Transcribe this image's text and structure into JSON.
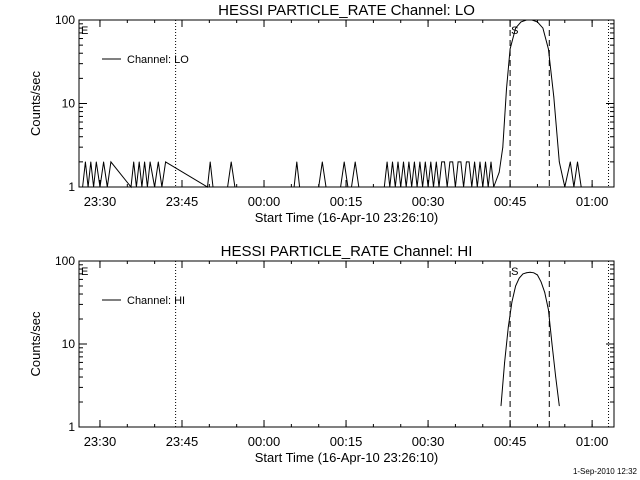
{
  "timestamp": "1-Sep-2010 12:32",
  "chart_data": [
    {
      "type": "line",
      "title": "HESSI PARTICLE_RATE Channel: LO",
      "xlabel": "Start Time (16-Apr-10 23:26:10)",
      "ylabel": "Counts/sec",
      "y_scale": "log",
      "ylim": [
        1,
        100
      ],
      "xlim": [
        "23:26:10",
        "01:04:00"
      ],
      "x_ticks": [
        "23:30",
        "23:45",
        "00:00",
        "00:15",
        "00:30",
        "00:45",
        "01:00"
      ],
      "y_ticks": [
        "1",
        "10",
        "100"
      ],
      "grid": false,
      "legend_position": "top-left",
      "series": [
        {
          "name": "Channel: LO",
          "x": [
            "23:26:50",
            "23:27:20",
            "23:27:50",
            "23:28:20",
            "23:28:50",
            "23:29:20",
            "23:30:00",
            "23:30:40",
            "23:31:20",
            "23:32:00",
            "23:35:40",
            "23:36:10",
            "23:36:40",
            "23:37:10",
            "23:37:40",
            "23:38:10",
            "23:38:40",
            "23:39:10",
            "23:40:00",
            "23:40:40",
            "23:41:20",
            "23:42:00",
            "23:49:40",
            "23:50:10",
            "23:50:40",
            "23:53:20",
            "23:54:00",
            "23:54:40",
            "00:05:30",
            "00:06:00",
            "00:06:30",
            "00:10:00",
            "00:10:40",
            "00:11:20",
            "00:14:00",
            "00:14:40",
            "00:15:20",
            "00:16:00",
            "00:16:40",
            "00:17:20",
            "00:22:00",
            "00:22:30",
            "00:23:00",
            "00:23:30",
            "00:24:00",
            "00:24:30",
            "00:25:00",
            "00:25:30",
            "00:26:00",
            "00:26:30",
            "00:27:00",
            "00:27:30",
            "00:28:00",
            "00:28:30",
            "00:29:00",
            "00:29:30",
            "00:30:00",
            "00:30:30",
            "00:31:00",
            "00:31:30",
            "00:32:00",
            "00:32:30",
            "00:33:00",
            "00:33:30",
            "00:34:00",
            "00:34:30",
            "00:35:00",
            "00:35:30",
            "00:36:00",
            "00:36:30",
            "00:37:00",
            "00:37:30",
            "00:38:00",
            "00:38:30",
            "00:39:00",
            "00:39:30",
            "00:40:00",
            "00:40:30",
            "00:41:00",
            "00:41:30",
            "00:42:00",
            "00:43:00",
            "00:43:40",
            "00:44:20",
            "00:45:00",
            "00:46:00",
            "00:47:00",
            "00:48:00",
            "00:49:00",
            "00:50:00",
            "00:51:00",
            "00:52:00",
            "00:53:00",
            "00:54:00",
            "00:55:00",
            "00:56:00",
            "00:56:40",
            "00:57:20",
            "00:58:00"
          ],
          "y": [
            1,
            2,
            1,
            2,
            1,
            2,
            1,
            2,
            1,
            2,
            1,
            2,
            1,
            2,
            1,
            2,
            1,
            2,
            1,
            2,
            1,
            2,
            1,
            2,
            1,
            1,
            2,
            1,
            1,
            2,
            1,
            1,
            2,
            1,
            1,
            2,
            1,
            1,
            2,
            1,
            1,
            2,
            1,
            2,
            1,
            2,
            1,
            2,
            1,
            2,
            1,
            2,
            1,
            2,
            1,
            2,
            1,
            2,
            1,
            2,
            1,
            2,
            2,
            1,
            2,
            2,
            1,
            2,
            2,
            1,
            2,
            2,
            1,
            2,
            1,
            2,
            1,
            2,
            1,
            2,
            1,
            1.5,
            3,
            15,
            45,
            80,
            95,
            100,
            100,
            95,
            80,
            45,
            12,
            2,
            1,
            2,
            1,
            2,
            1
          ]
        }
      ],
      "markers": [
        {
          "kind": "dotted",
          "x": "23:43:50"
        },
        {
          "kind": "dotted",
          "x": "01:03:00"
        },
        {
          "kind": "dashed",
          "x": "00:45:00",
          "label": "S"
        },
        {
          "kind": "dashed",
          "x": "00:52:10"
        }
      ],
      "corner_label": "E"
    },
    {
      "type": "line",
      "title": "HESSI PARTICLE_RATE Channel: HI",
      "xlabel": "Start Time (16-Apr-10 23:26:10)",
      "ylabel": "Counts/sec",
      "y_scale": "log",
      "ylim": [
        1,
        100
      ],
      "xlim": [
        "23:26:10",
        "01:04:00"
      ],
      "x_ticks": [
        "23:30",
        "23:45",
        "00:00",
        "00:15",
        "00:30",
        "00:45",
        "01:00"
      ],
      "y_ticks": [
        "1",
        "10",
        "100"
      ],
      "grid": false,
      "legend_position": "top-left",
      "series": [
        {
          "name": "Channel: HI",
          "x": [
            "00:43:20",
            "00:44:00",
            "00:44:40",
            "00:45:20",
            "00:46:00",
            "00:46:40",
            "00:47:20",
            "00:48:00",
            "00:48:40",
            "00:49:20",
            "00:50:00",
            "00:50:40",
            "00:51:20",
            "00:52:00",
            "00:52:40",
            "00:53:20",
            "00:54:00"
          ],
          "y": [
            1.8,
            6,
            16,
            32,
            50,
            62,
            70,
            72,
            73,
            72,
            68,
            56,
            42,
            26,
            10,
            4,
            1.8
          ]
        }
      ],
      "markers": [
        {
          "kind": "dotted",
          "x": "23:43:50"
        },
        {
          "kind": "dotted",
          "x": "01:03:00"
        },
        {
          "kind": "dashed",
          "x": "00:45:00",
          "label": "S"
        },
        {
          "kind": "dashed",
          "x": "00:52:10"
        }
      ],
      "corner_label": "E"
    }
  ]
}
